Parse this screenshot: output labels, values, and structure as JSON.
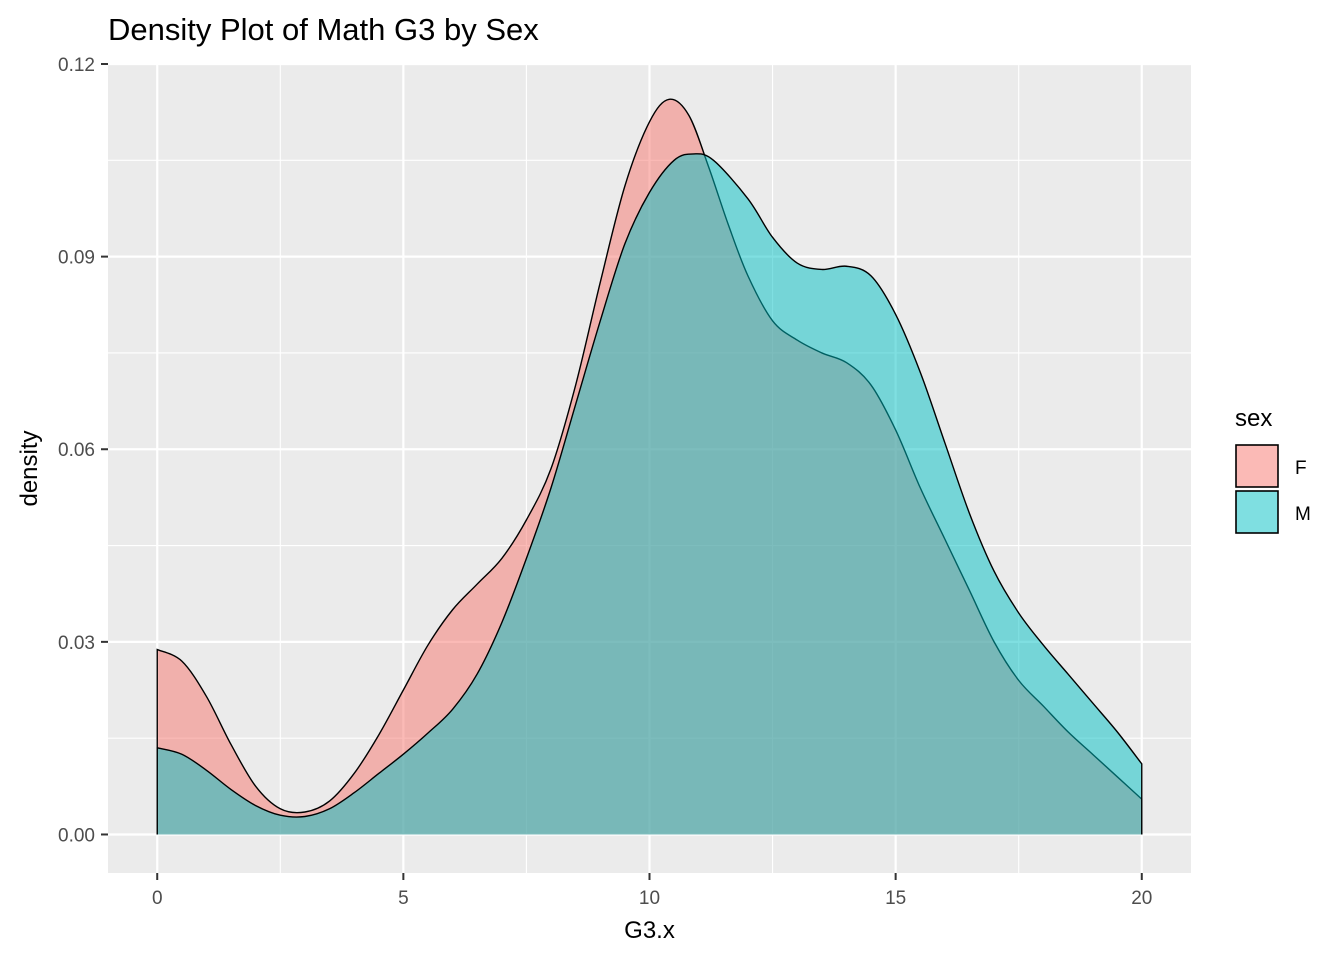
{
  "chart_data": {
    "type": "area",
    "title": "Density Plot of Math G3 by Sex",
    "xlabel": "G3.x",
    "ylabel": "density",
    "xlim": [
      -1,
      21
    ],
    "ylim": [
      -0.006,
      0.12
    ],
    "x_ticks": [
      0,
      5,
      10,
      15,
      20
    ],
    "x_tick_labels": [
      "0",
      "5",
      "10",
      "15",
      "20"
    ],
    "y_ticks": [
      0.0,
      0.03,
      0.06,
      0.09,
      0.12
    ],
    "y_tick_labels": [
      "0.00",
      "0.03",
      "0.06",
      "0.09",
      "0.12"
    ],
    "grid": true,
    "legend": {
      "title": "sex",
      "placement": "right"
    },
    "series": [
      {
        "name": "F",
        "color": "#F8766D",
        "opacity": 0.5,
        "points": [
          [
            0.0,
            0.0288
          ],
          [
            0.5,
            0.027
          ],
          [
            1.0,
            0.0215
          ],
          [
            1.5,
            0.014
          ],
          [
            2.0,
            0.0075
          ],
          [
            2.5,
            0.004
          ],
          [
            3.0,
            0.0035
          ],
          [
            3.5,
            0.0052
          ],
          [
            4.0,
            0.0095
          ],
          [
            4.5,
            0.0155
          ],
          [
            5.0,
            0.0225
          ],
          [
            5.5,
            0.0295
          ],
          [
            6.0,
            0.035
          ],
          [
            6.5,
            0.039
          ],
          [
            7.0,
            0.043
          ],
          [
            7.5,
            0.049
          ],
          [
            8.0,
            0.057
          ],
          [
            8.5,
            0.07
          ],
          [
            9.0,
            0.086
          ],
          [
            9.5,
            0.101
          ],
          [
            10.0,
            0.111
          ],
          [
            10.4,
            0.1145
          ],
          [
            10.8,
            0.112
          ],
          [
            11.2,
            0.104
          ],
          [
            11.6,
            0.095
          ],
          [
            12.0,
            0.087
          ],
          [
            12.5,
            0.08
          ],
          [
            13.0,
            0.077
          ],
          [
            13.5,
            0.075
          ],
          [
            14.0,
            0.0735
          ],
          [
            14.5,
            0.07
          ],
          [
            15.0,
            0.063
          ],
          [
            15.5,
            0.054
          ],
          [
            16.0,
            0.046
          ],
          [
            16.5,
            0.038
          ],
          [
            17.0,
            0.03
          ],
          [
            17.5,
            0.024
          ],
          [
            18.0,
            0.02
          ],
          [
            18.5,
            0.016
          ],
          [
            19.0,
            0.0125
          ],
          [
            19.5,
            0.009
          ],
          [
            20.0,
            0.0055
          ]
        ]
      },
      {
        "name": "M",
        "color": "#00BFC4",
        "opacity": 0.5,
        "points": [
          [
            0.0,
            0.0135
          ],
          [
            0.5,
            0.0125
          ],
          [
            1.0,
            0.01
          ],
          [
            1.5,
            0.007
          ],
          [
            2.0,
            0.0045
          ],
          [
            2.5,
            0.003
          ],
          [
            3.0,
            0.0028
          ],
          [
            3.5,
            0.004
          ],
          [
            4.0,
            0.0065
          ],
          [
            4.5,
            0.0095
          ],
          [
            5.0,
            0.0125
          ],
          [
            5.5,
            0.0158
          ],
          [
            6.0,
            0.0195
          ],
          [
            6.5,
            0.025
          ],
          [
            7.0,
            0.033
          ],
          [
            7.5,
            0.043
          ],
          [
            8.0,
            0.054
          ],
          [
            8.5,
            0.067
          ],
          [
            9.0,
            0.08
          ],
          [
            9.5,
            0.092
          ],
          [
            10.0,
            0.1
          ],
          [
            10.5,
            0.105
          ],
          [
            10.9,
            0.106
          ],
          [
            11.3,
            0.105
          ],
          [
            12.0,
            0.099
          ],
          [
            12.5,
            0.093
          ],
          [
            13.0,
            0.089
          ],
          [
            13.5,
            0.088
          ],
          [
            14.0,
            0.0885
          ],
          [
            14.5,
            0.087
          ],
          [
            15.0,
            0.081
          ],
          [
            15.5,
            0.072
          ],
          [
            16.0,
            0.061
          ],
          [
            16.5,
            0.05
          ],
          [
            17.0,
            0.041
          ],
          [
            17.5,
            0.0345
          ],
          [
            18.0,
            0.0295
          ],
          [
            18.5,
            0.025
          ],
          [
            19.0,
            0.0205
          ],
          [
            19.5,
            0.016
          ],
          [
            20.0,
            0.011
          ]
        ]
      }
    ]
  }
}
